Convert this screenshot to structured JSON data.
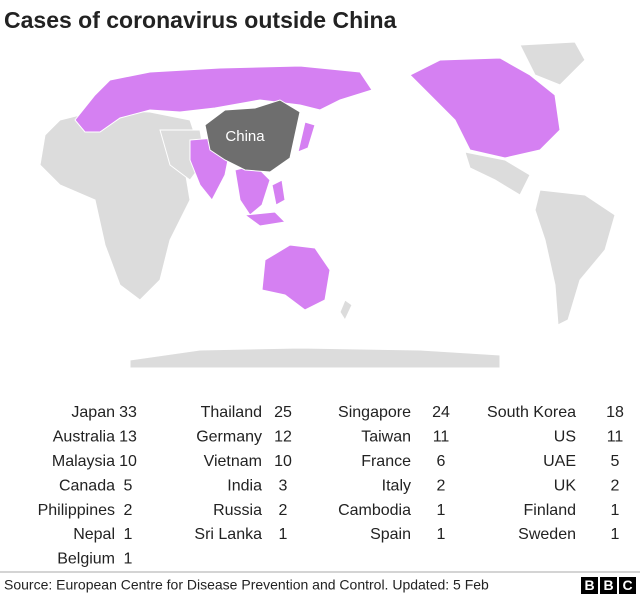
{
  "title": "Cases of coronavirus outside China",
  "map": {
    "label": "China"
  },
  "table": {
    "columns": [
      [
        {
          "country": "Japan",
          "cases": 33
        },
        {
          "country": "Australia",
          "cases": 13
        },
        {
          "country": "Malaysia",
          "cases": 10
        },
        {
          "country": "Canada",
          "cases": 5
        },
        {
          "country": "Philippines",
          "cases": 2
        },
        {
          "country": "Nepal",
          "cases": 1
        },
        {
          "country": "Belgium",
          "cases": 1
        }
      ],
      [
        {
          "country": "Thailand",
          "cases": 25
        },
        {
          "country": "Germany",
          "cases": 12
        },
        {
          "country": "Vietnam",
          "cases": 10
        },
        {
          "country": "India",
          "cases": 3
        },
        {
          "country": "Russia",
          "cases": 2
        },
        {
          "country": "Sri Lanka",
          "cases": 1
        }
      ],
      [
        {
          "country": "Singapore",
          "cases": 24
        },
        {
          "country": "Taiwan",
          "cases": 11
        },
        {
          "country": "France",
          "cases": 6
        },
        {
          "country": "Italy",
          "cases": 2
        },
        {
          "country": "Cambodia",
          "cases": 1
        },
        {
          "country": "Spain",
          "cases": 1
        }
      ],
      [
        {
          "country": "South Korea",
          "cases": 18
        },
        {
          "country": "US",
          "cases": 11
        },
        {
          "country": "UAE",
          "cases": 5
        },
        {
          "country": "UK",
          "cases": 2
        },
        {
          "country": "Finland",
          "cases": 1
        },
        {
          "country": "Sweden",
          "cases": 1
        }
      ]
    ]
  },
  "source": "Source: European Centre for Disease Prevention and Control. Updated: 5 Feb",
  "logo": [
    "B",
    "B",
    "C"
  ]
}
